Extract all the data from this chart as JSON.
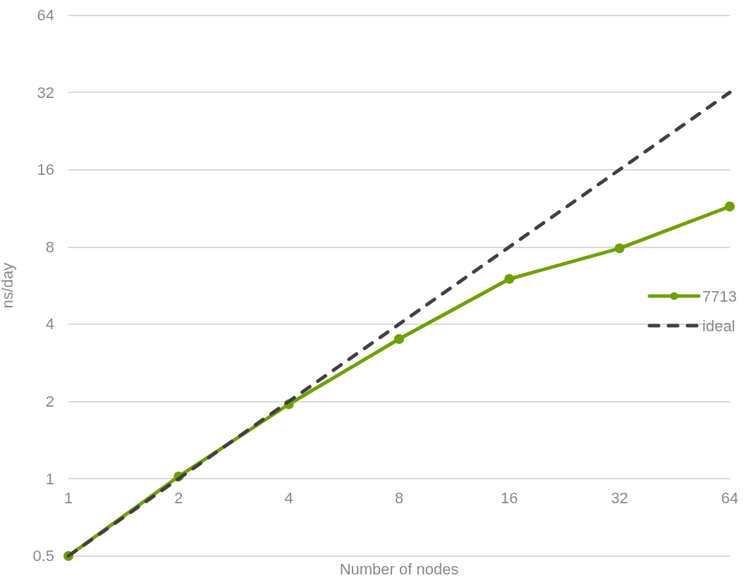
{
  "chart_data": {
    "type": "line",
    "xlabel": "Number of nodes",
    "ylabel": "ns/day",
    "x": [
      1,
      2,
      4,
      8,
      16,
      32,
      64
    ],
    "series": [
      {
        "name": "7713",
        "color": "#6ea100",
        "values": [
          0.5,
          1.02,
          1.95,
          3.5,
          6.0,
          7.9,
          11.5
        ],
        "marker": "circle",
        "line_style": "solid"
      },
      {
        "name": "ideal",
        "color": "#404040",
        "values": [
          0.5,
          1,
          2,
          4,
          8,
          16,
          32
        ],
        "marker": "none",
        "line_style": "dashed"
      }
    ],
    "log": "xy",
    "xlim": [
      1,
      64
    ],
    "xticks": [
      1,
      2,
      4,
      8,
      16,
      32,
      64
    ],
    "ylim": [
      0.5,
      64
    ],
    "yticks": [
      0.5,
      1,
      2,
      4,
      8,
      16,
      32,
      64
    ],
    "grid": "y",
    "legend": "right"
  }
}
